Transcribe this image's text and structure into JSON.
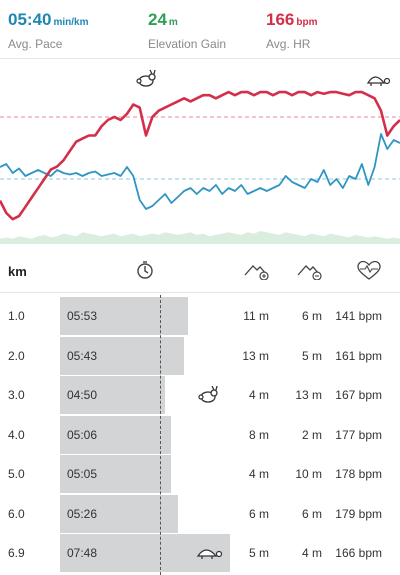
{
  "stats": {
    "pace": {
      "value": "05:40",
      "unit": "min/km",
      "label": "Avg. Pace",
      "color": "#1e88b4"
    },
    "elevation": {
      "value": "24",
      "unit": "m",
      "label": "Elevation Gain",
      "color": "#2f9e57"
    },
    "hr": {
      "value": "166",
      "unit": "bpm",
      "label": "Avg. HR",
      "color": "#d32f4a"
    }
  },
  "chart_data": {
    "type": "line",
    "series": [
      {
        "color": "#d32f4a",
        "values": [
          108,
          100,
          96,
          98,
          104,
          110,
          116,
          122,
          128,
          130,
          134,
          140,
          146,
          148,
          150,
          150,
          156,
          160,
          162,
          160,
          164,
          170,
          168,
          150,
          162,
          166,
          168,
          170,
          172,
          174,
          172,
          174,
          176,
          176,
          174,
          176,
          178,
          176,
          178,
          178,
          176,
          178,
          178,
          176,
          178,
          178,
          176,
          178,
          178,
          176,
          178,
          177,
          178,
          178,
          177,
          176,
          178,
          178,
          176,
          174,
          166,
          150,
          156,
          160
        ]
      },
      {
        "color": "#2f95c4",
        "values": [
          28,
          30,
          24,
          27,
          22,
          24,
          26,
          24,
          22,
          26,
          24,
          23,
          24,
          22,
          24,
          25,
          22,
          23,
          24,
          22,
          28,
          22,
          6,
          0,
          2,
          6,
          10,
          4,
          8,
          12,
          14,
          10,
          14,
          12,
          16,
          10,
          14,
          12,
          16,
          10,
          12,
          14,
          12,
          14,
          16,
          22,
          18,
          16,
          14,
          20,
          18,
          26,
          16,
          20,
          14,
          22,
          20,
          30,
          16,
          28,
          50,
          40,
          46,
          44
        ]
      },
      {
        "color": "#b9ddc6",
        "values": [
          4,
          5,
          4,
          6,
          5,
          4,
          6,
          7,
          5,
          6,
          8,
          7,
          6,
          9,
          8,
          7,
          6,
          7,
          8,
          6,
          7,
          8,
          6,
          7,
          8,
          7,
          9,
          8,
          7,
          8,
          9,
          7,
          8,
          6,
          7,
          8,
          9,
          8,
          7,
          9,
          8,
          10,
          9,
          8,
          7,
          9,
          8,
          7,
          6,
          8,
          7,
          6,
          8,
          7,
          6,
          5,
          7,
          6,
          5,
          6,
          5,
          4,
          5,
          4
        ]
      }
    ],
    "hr_avg": 166,
    "pace_avg": 5.67
  },
  "table": {
    "header": {
      "km": "km"
    },
    "avg_pace_seconds": 340,
    "max_pace_seconds": 560,
    "rows": [
      {
        "km": "1.0",
        "pace": "05:53",
        "pace_seconds": 353,
        "ascent": "11 m",
        "descent": "6 m",
        "hr": "141 bpm"
      },
      {
        "km": "2.0",
        "pace": "05:43",
        "pace_seconds": 343,
        "ascent": "13 m",
        "descent": "5 m",
        "hr": "161 bpm"
      },
      {
        "km": "3.0",
        "pace": "04:50",
        "pace_seconds": 290,
        "ascent": "4 m",
        "descent": "13 m",
        "hr": "167 bpm",
        "badge": "rabbit-icon"
      },
      {
        "km": "4.0",
        "pace": "05:06",
        "pace_seconds": 306,
        "ascent": "8 m",
        "descent": "2 m",
        "hr": "177 bpm"
      },
      {
        "km": "5.0",
        "pace": "05:05",
        "pace_seconds": 305,
        "ascent": "4 m",
        "descent": "10 m",
        "hr": "178 bpm"
      },
      {
        "km": "6.0",
        "pace": "05:26",
        "pace_seconds": 326,
        "ascent": "6 m",
        "descent": "6 m",
        "hr": "179 bpm"
      },
      {
        "km": "6.9",
        "pace": "07:48",
        "pace_seconds": 468,
        "ascent": "5 m",
        "descent": "4 m",
        "hr": "166 bpm",
        "badge": "turtle-icon"
      }
    ]
  }
}
